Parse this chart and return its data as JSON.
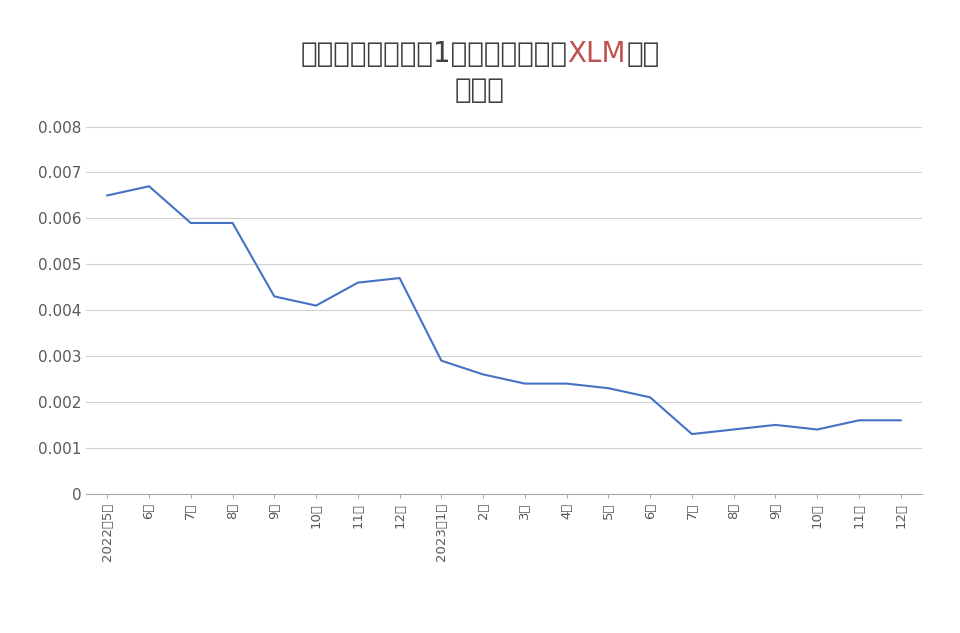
{
  "title_part1": "ステラウォークの1ジェムあたりの",
  "title_xlm": "XLM",
  "title_part2": "価格",
  "title_line2": "の推移",
  "x_labels": [
    "2022年5月",
    "6月",
    "7月",
    "8月",
    "9月",
    "10月",
    "11月",
    "12月",
    "2023年1月",
    "2月",
    "3月",
    "4月",
    "5月",
    "6月",
    "7月",
    "8月",
    "9月",
    "10月",
    "11月",
    "12月"
  ],
  "values": [
    0.0065,
    0.0067,
    0.0059,
    0.0059,
    0.0043,
    0.0041,
    0.0046,
    0.0047,
    0.0029,
    0.0026,
    0.0024,
    0.0024,
    0.0023,
    0.0021,
    0.0013,
    0.0014,
    0.0015,
    0.0014,
    0.0016,
    0.0016
  ],
  "line_color": "#4472C4",
  "background_color": "#ffffff",
  "ylim": [
    0,
    0.008
  ],
  "yticks": [
    0,
    0.001,
    0.002,
    0.003,
    0.004,
    0.005,
    0.006,
    0.007,
    0.008
  ],
  "grid_color": "#d0d0d0",
  "title_color": "#404040",
  "xlm_color": "#c0504d",
  "tick_label_color": "#595959",
  "title_fontsize": 20,
  "tick_fontsize": 11
}
